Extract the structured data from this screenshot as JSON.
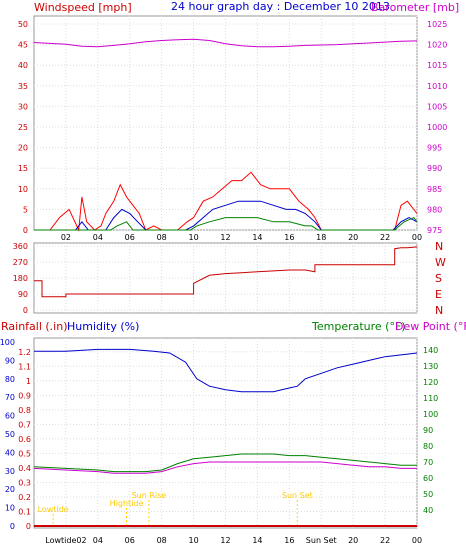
{
  "chart_data": [
    {
      "type": "line",
      "title": "24 hour graph day : December 10 2013",
      "ylabel_left": "Windspeed [mph]",
      "ylabel_right": "Barometer [mb]",
      "y_left_ticks": [
        "50",
        "45",
        "40",
        "35",
        "30",
        "25",
        "20",
        "15",
        "10",
        "5",
        "0"
      ],
      "y_right_ticks": [
        "1025",
        "1020",
        "1015",
        "1010",
        "1005",
        "1000",
        "995",
        "990",
        "985",
        "980",
        "975"
      ],
      "ylim_left": [
        0,
        50
      ],
      "ylim_right": [
        975,
        1025
      ],
      "x_ticks": [
        "02",
        "04",
        "06",
        "08",
        "10",
        "12",
        "14",
        "16",
        "18",
        "20",
        "22",
        "00"
      ],
      "xlim": [
        0,
        24
      ],
      "grid": true,
      "colors": {
        "gust": "#ff0000",
        "average": "#0000cc",
        "lull": "#008000",
        "barometer": "#cc00cc"
      },
      "barometer": {
        "x": [
          0,
          2,
          3,
          4,
          5,
          6,
          7,
          8,
          9,
          10,
          11,
          12,
          13,
          14,
          15,
          16,
          17,
          18,
          19,
          20,
          21,
          22,
          23,
          24
        ],
        "values": [
          1020.5,
          1020.1,
          1019.6,
          1019.5,
          1019.8,
          1020.2,
          1020.7,
          1021.0,
          1021.2,
          1021.3,
          1021.0,
          1020.2,
          1019.7,
          1019.5,
          1019.5,
          1019.6,
          1019.8,
          1019.9,
          1020.0,
          1020.2,
          1020.4,
          1020.6,
          1020.8,
          1020.9
        ]
      },
      "wind_gust": {
        "x": [
          0,
          1,
          1.6,
          2.2,
          2.8,
          3.0,
          3.3,
          3.8,
          4.2,
          4.5,
          5.0,
          5.4,
          5.8,
          6.2,
          6.6,
          7.0,
          7.5,
          8.0,
          8.6,
          9.0,
          9.6,
          10.0,
          10.6,
          11.2,
          11.8,
          12.4,
          13.0,
          13.6,
          14.2,
          14.8,
          15.4,
          16.0,
          16.6,
          17.2,
          17.6,
          18.0,
          19.0,
          20.0,
          21.0,
          22.0,
          22.6,
          23.0,
          23.4,
          24.0
        ],
        "values": [
          0,
          0,
          3,
          5,
          0,
          8,
          2,
          0,
          1,
          4,
          7,
          11,
          8,
          6,
          4,
          0,
          1,
          0,
          0,
          0,
          2,
          3,
          7,
          8,
          10,
          12,
          12,
          14,
          11,
          10,
          10,
          10,
          7,
          5,
          3,
          0,
          0,
          0,
          0,
          0,
          0,
          6,
          7,
          4
        ]
      },
      "wind_average": {
        "x": [
          0,
          2.6,
          3.0,
          3.4,
          4.5,
          5.0,
          5.5,
          6.0,
          6.5,
          7.0,
          9.5,
          10.0,
          10.6,
          11.2,
          12.0,
          12.8,
          13.6,
          14.2,
          15.0,
          15.8,
          16.4,
          17.0,
          17.6,
          18.0,
          22.5,
          23.0,
          23.5,
          24.0
        ],
        "values": [
          0,
          0,
          2,
          0,
          0,
          3,
          5,
          4,
          2,
          0,
          0,
          1,
          3,
          5,
          6,
          7,
          7,
          7,
          6,
          5,
          5,
          4,
          2,
          0,
          0,
          2,
          3,
          2
        ]
      },
      "wind_lull": {
        "x": [
          0,
          4.8,
          5.2,
          5.8,
          6.2,
          9.8,
          10.2,
          11.0,
          12.0,
          13.0,
          14.0,
          15.0,
          16.0,
          17.0,
          17.4,
          17.8,
          22.6,
          23.2,
          23.8,
          24.0
        ],
        "values": [
          0,
          0,
          1,
          2,
          0,
          0,
          1,
          2,
          3,
          3,
          3,
          2,
          2,
          1,
          1,
          0,
          0,
          2,
          3,
          2
        ]
      }
    },
    {
      "type": "line",
      "title": "",
      "ylabel_left": "",
      "ylabel_right": "",
      "y_left_ticks": [
        "360",
        "270",
        "180",
        "90",
        "0"
      ],
      "y_right_ticks": [
        "N",
        "W",
        "S",
        "E",
        "N"
      ],
      "ylim": [
        0,
        360
      ],
      "xlim": [
        0,
        24
      ],
      "grid": true,
      "wind_direction": {
        "x": [
          0,
          0.5,
          0.5,
          2.0,
          2.0,
          10.0,
          10.0,
          11.0,
          12.0,
          13.0,
          14.0,
          15.0,
          16.0,
          17.0,
          17.6,
          17.6,
          22.6,
          22.6,
          23.0,
          23.4,
          24.0
        ],
        "values": [
          165,
          165,
          75,
          75,
          90,
          90,
          150,
          195,
          205,
          210,
          215,
          220,
          225,
          225,
          215,
          255,
          255,
          345,
          350,
          350,
          355
        ]
      },
      "color": "#cc0000"
    },
    {
      "type": "line",
      "title": "",
      "legend": [
        "Rainfall (.in)",
        "Humidity (%)",
        "Temperature (°F)",
        "Dew Point (°F)"
      ],
      "y_left_ticks": [
        "100",
        "90",
        "80",
        "70",
        "60",
        "50",
        "40",
        "30",
        "20",
        "10",
        "0"
      ],
      "y_left2_ticks": [
        "1.2",
        "1.1",
        "1",
        "0.9",
        "0.8",
        "0.7",
        "0.6",
        "0.5",
        "0.4",
        "0.3",
        "0.2",
        "0.1",
        "0"
      ],
      "y_right_ticks": [
        "140",
        "130",
        "120",
        "110",
        "100",
        "90",
        "80",
        "70",
        "60",
        "50",
        "40"
      ],
      "ylim_humidity": [
        0,
        100
      ],
      "ylim_temperature": [
        30,
        145
      ],
      "xlim": [
        0,
        24
      ],
      "grid": true,
      "colors": {
        "rainfall": "#cc0000",
        "humidity": "#0000cc",
        "temperature": "#008000",
        "dewpoint": "#cc00cc",
        "sun": "#ffd700"
      },
      "humidity": {
        "x": [
          0,
          2,
          4,
          6,
          7.5,
          8.5,
          9.5,
          10.2,
          11,
          12,
          13,
          14,
          15,
          16,
          16.5,
          17,
          18,
          19,
          20,
          21,
          22,
          23,
          24
        ],
        "values": [
          95,
          95,
          96,
          96,
          95,
          94,
          89,
          80,
          76,
          74,
          73,
          73,
          73,
          75,
          76,
          80,
          83,
          86,
          88,
          90,
          92,
          93,
          94
        ]
      },
      "temperature": {
        "x": [
          0,
          2,
          4,
          5,
          6,
          7,
          8,
          9,
          10,
          11,
          12,
          13,
          14,
          15,
          16,
          17,
          18,
          19,
          20,
          21,
          22,
          23,
          24
        ],
        "values": [
          67,
          66,
          65,
          64,
          64,
          64,
          65,
          69,
          72,
          73,
          74,
          75,
          75,
          75,
          74,
          74,
          73,
          72,
          71,
          70,
          69,
          68,
          68
        ]
      },
      "dewpoint": {
        "x": [
          0,
          2,
          4,
          5,
          6,
          7,
          8,
          9,
          10,
          11,
          12,
          13,
          14,
          15,
          16,
          17,
          18,
          19,
          20,
          21,
          22,
          23,
          24
        ],
        "values": [
          66,
          65,
          64,
          63,
          63,
          63,
          64,
          67,
          69,
          70,
          70,
          70,
          70,
          70,
          70,
          70,
          70,
          69,
          68,
          67,
          67,
          66,
          66
        ]
      },
      "rainfall": {
        "x": [
          0,
          24
        ],
        "values": [
          0,
          0
        ]
      },
      "sun_events": [
        {
          "label": "Lowtide",
          "x": 1.2
        },
        {
          "label": "Hightide",
          "x": 5.8
        },
        {
          "label": "Sun Rise",
          "x": 7.2
        },
        {
          "label": "Sun Set",
          "x": 16.5
        }
      ],
      "x_ticks": [
        "Lowtide02",
        "04",
        "06",
        "08",
        "10",
        "12",
        "14",
        "16",
        "Sun Set",
        "20",
        "22",
        "00"
      ]
    }
  ]
}
